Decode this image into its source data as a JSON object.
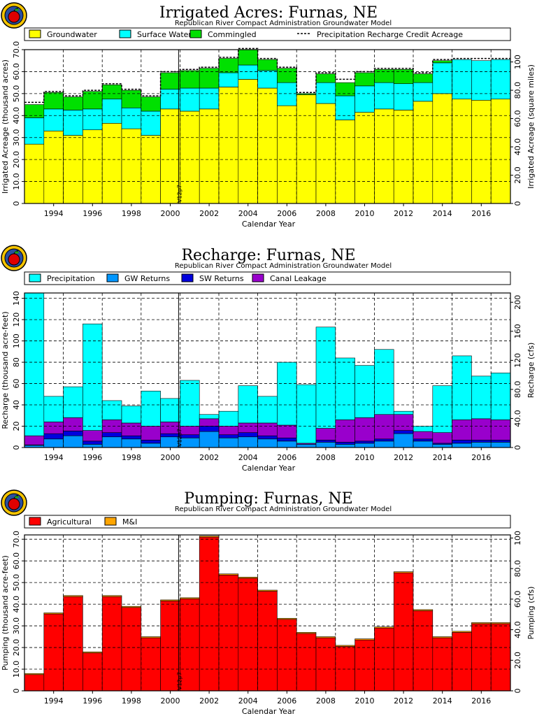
{
  "chart_data": [
    {
      "type": "bar",
      "stacked": true,
      "title": "Irrigated  Acres:  Furnas,  NE",
      "subtitle": "Republican  River  Compact  Administration  Groundwater  Model",
      "xlabel": "Calendar  Year",
      "ylabel": "Irrigated  Acreage  (thousand  acres)",
      "ylabel_right": "Irrigated  Acreage  (square  miles)",
      "ylim": [
        0,
        70
      ],
      "yticks": [
        "0",
        "10.0",
        "20.0",
        "30.0",
        "40.0",
        "50.0",
        "60.0",
        "70.0"
      ],
      "yticks_right": [
        "0",
        "20.0",
        "40.0",
        "60.0",
        "80.0",
        "100"
      ],
      "marker_label": "V12p7",
      "grid": true,
      "legend_position": "top",
      "x": [
        1993,
        1994,
        1995,
        1996,
        1997,
        1998,
        1999,
        2000,
        2001,
        2002,
        2003,
        2004,
        2005,
        2006,
        2007,
        2008,
        2009,
        2010,
        2011,
        2012,
        2013,
        2014,
        2015,
        2016,
        2017
      ],
      "xticks": [
        "1994",
        "1996",
        "1998",
        "2000",
        "2002",
        "2004",
        "2006",
        "2008",
        "2010",
        "2012",
        "2014",
        "2016"
      ],
      "series": [
        {
          "name": "Groundwater",
          "color": "#ffff00",
          "values": [
            27,
            33,
            31,
            33.5,
            36.5,
            34,
            31,
            43,
            42,
            43,
            53,
            56.5,
            52.5,
            44.5,
            49.5,
            45.5,
            38,
            41.5,
            43,
            42.5,
            46.5,
            50,
            47.5,
            47,
            47.5
          ]
        },
        {
          "name": "Surface Water",
          "color": "#00ffff",
          "values": [
            12,
            10,
            11.5,
            9.5,
            11,
            9.5,
            11,
            9,
            10.5,
            9.5,
            6.5,
            6.5,
            8,
            10.5,
            0,
            9.5,
            11,
            12,
            12,
            12,
            8.5,
            14,
            18,
            18,
            18
          ]
        },
        {
          "name": "Commingled",
          "color": "#00e000",
          "values": [
            6,
            7.5,
            6,
            8,
            6.5,
            8,
            6.5,
            7.5,
            8,
            9,
            6.5,
            7,
            5,
            6.5,
            0.5,
            4,
            6,
            6,
            6,
            6.5,
            4,
            1,
            0,
            0,
            0
          ]
        }
      ],
      "precipitation_recharge_credit_acreage": {
        "name": "Precipitation  Recharge  Credit  Acreage",
        "values": [
          46,
          51,
          49,
          51.5,
          54.5,
          52,
          49,
          60,
          61,
          62,
          66.5,
          70.5,
          66,
          62,
          50.5,
          59.5,
          56.5,
          60,
          61.5,
          61.5,
          59.5,
          65.5,
          66,
          66,
          66
        ]
      }
    },
    {
      "type": "bar",
      "stacked": true,
      "title": "Recharge:  Furnas,  NE",
      "subtitle": "Republican  River  Compact  Administration  Groundwater  Model",
      "xlabel": "Calendar  Year",
      "ylabel": "Recharge  (thousand  acre-feet)",
      "ylabel_right": "Recharge  (cfs)",
      "ylim": [
        0,
        145
      ],
      "yticks": [
        "0",
        "20",
        "40",
        "60",
        "80",
        "100",
        "120",
        "140"
      ],
      "yticks_right": [
        "0",
        "40.0",
        "80.0",
        "120",
        "160",
        "200"
      ],
      "marker_label": "V12p7",
      "grid": true,
      "legend_position": "top",
      "x": [
        1993,
        1994,
        1995,
        1996,
        1997,
        1998,
        1999,
        2000,
        2001,
        2002,
        2003,
        2004,
        2005,
        2006,
        2007,
        2008,
        2009,
        2010,
        2011,
        2012,
        2013,
        2014,
        2015,
        2016,
        2017
      ],
      "xticks": [
        "1994",
        "1996",
        "1998",
        "2000",
        "2002",
        "2004",
        "2006",
        "2008",
        "2010",
        "2012",
        "2014",
        "2016"
      ],
      "series": [
        {
          "name": "GW  Returns",
          "color": "#0096ff",
          "values": [
            2,
            8,
            11,
            3,
            10,
            8,
            4,
            10,
            9,
            15,
            9,
            10,
            8,
            6,
            3,
            5,
            3,
            4,
            6,
            13,
            6,
            3,
            4,
            5,
            5
          ]
        },
        {
          "name": "SW  Returns",
          "color": "#0000dd",
          "values": [
            0.5,
            5,
            4.5,
            3,
            4,
            3,
            3,
            3,
            3,
            5,
            3,
            4,
            3,
            3,
            0,
            2,
            2,
            2,
            2,
            3,
            2,
            1,
            3,
            2,
            2
          ]
        },
        {
          "name": "Canal  Leakage",
          "color": "#9900cc",
          "values": [
            8.5,
            11,
            12.5,
            10,
            12,
            12,
            13,
            11,
            8,
            7,
            8,
            9,
            12,
            12,
            1,
            11,
            21,
            22,
            23,
            15,
            7,
            10,
            19,
            20,
            19
          ]
        },
        {
          "name": "Precipitation",
          "color": "#00ffff",
          "values": [
            134,
            24,
            29,
            100,
            18,
            16,
            33,
            22,
            43,
            4,
            14,
            35,
            25,
            59,
            55,
            95,
            58,
            49,
            61,
            3,
            5,
            44,
            60,
            40,
            44
          ]
        }
      ]
    },
    {
      "type": "bar",
      "stacked": true,
      "title": "Pumping:  Furnas,  NE",
      "subtitle": "Republican  River  Compact  Administration  Groundwater  Model",
      "xlabel": "Calendar  Year",
      "ylabel": "Pumping  (thousand  acre-feet)",
      "ylabel_right": "Pumping  (cfs)",
      "ylim": [
        0,
        72
      ],
      "yticks": [
        "0",
        "10.0",
        "20.0",
        "30.0",
        "40.0",
        "50.0",
        "60.0",
        "70.0"
      ],
      "yticks_right": [
        "0",
        "20.0",
        "40.0",
        "60.0",
        "80.0",
        "100"
      ],
      "marker_label": "V12p7",
      "grid": true,
      "legend_position": "top",
      "x": [
        1993,
        1994,
        1995,
        1996,
        1997,
        1998,
        1999,
        2000,
        2001,
        2002,
        2003,
        2004,
        2005,
        2006,
        2007,
        2008,
        2009,
        2010,
        2011,
        2012,
        2013,
        2014,
        2015,
        2016,
        2017
      ],
      "xticks": [
        "1994",
        "1996",
        "1998",
        "2000",
        "2002",
        "2004",
        "2006",
        "2008",
        "2010",
        "2012",
        "2014",
        "2016"
      ],
      "series": [
        {
          "name": "Agricultural",
          "color": "#ff0000",
          "values": [
            7.5,
            35.5,
            43.5,
            17.5,
            43.5,
            38.5,
            24.5,
            41.5,
            42.5,
            71,
            53.5,
            52,
            46,
            33,
            26.5,
            24.5,
            20.5,
            23.5,
            29,
            54.5,
            37,
            24.5,
            27,
            31,
            31
          ]
        },
        {
          "name": "M&I",
          "color": "#ffa500",
          "values": [
            0.5,
            0.5,
            0.5,
            0.5,
            0.5,
            0.5,
            0.5,
            0.5,
            0.5,
            0.5,
            0.5,
            0.5,
            0.5,
            0.5,
            0.5,
            0.5,
            0.5,
            0.5,
            0.5,
            0.5,
            0.5,
            0.5,
            0.5,
            0.5,
            0.5
          ]
        }
      ]
    }
  ]
}
